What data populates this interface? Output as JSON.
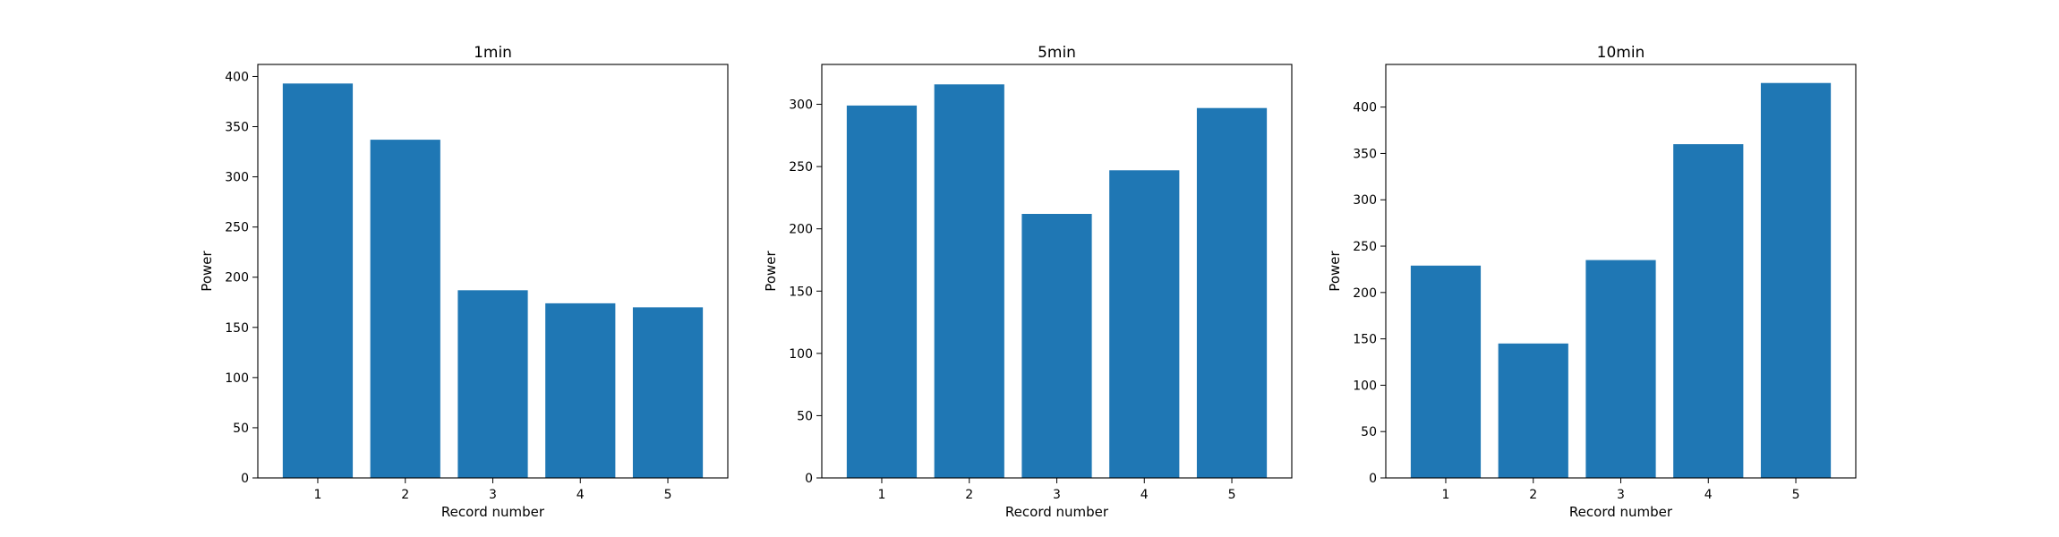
{
  "chart_data": [
    {
      "type": "bar",
      "title": "1min",
      "xlabel": "Record number",
      "ylabel": "Power",
      "categories": [
        "1",
        "2",
        "3",
        "4",
        "5"
      ],
      "values": [
        393,
        337,
        187,
        174,
        170
      ],
      "ylim": [
        0,
        412
      ],
      "yticks": [
        0,
        50,
        100,
        150,
        200,
        250,
        300,
        350,
        400
      ],
      "grid": false,
      "color": "#1f77b4"
    },
    {
      "type": "bar",
      "title": "5min",
      "xlabel": "Record number",
      "ylabel": "Power",
      "categories": [
        "1",
        "2",
        "3",
        "4",
        "5"
      ],
      "values": [
        299,
        316,
        212,
        247,
        297
      ],
      "ylim": [
        0,
        332
      ],
      "yticks": [
        0,
        50,
        100,
        150,
        200,
        250,
        300
      ],
      "grid": false,
      "color": "#1f77b4"
    },
    {
      "type": "bar",
      "title": "10min",
      "xlabel": "Record number",
      "ylabel": "Power",
      "categories": [
        "1",
        "2",
        "3",
        "4",
        "5"
      ],
      "values": [
        229,
        145,
        235,
        360,
        426
      ],
      "ylim": [
        0,
        446
      ],
      "yticks": [
        0,
        50,
        100,
        150,
        200,
        250,
        300,
        350,
        400
      ],
      "grid": false,
      "color": "#1f77b4"
    }
  ]
}
